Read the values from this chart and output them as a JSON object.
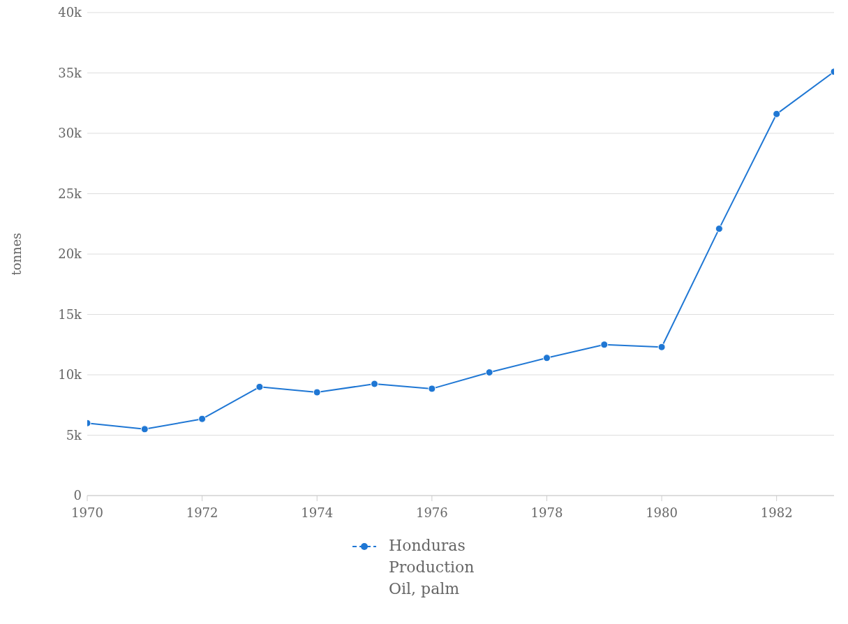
{
  "chart_data": {
    "type": "line",
    "ylabel": "tonnes",
    "x": [
      1970,
      1971,
      1972,
      1973,
      1974,
      1975,
      1976,
      1977,
      1978,
      1979,
      1980,
      1981,
      1982,
      1983
    ],
    "series": [
      {
        "name": "Honduras Production Oil, palm",
        "color": "#1f77d4",
        "values": [
          6000,
          5500,
          6350,
          9000,
          8550,
          9250,
          8850,
          10200,
          11400,
          12500,
          12300,
          22100,
          31600,
          35100
        ]
      }
    ],
    "xlim": [
      1970,
      1983
    ],
    "xticks": [
      1970,
      1972,
      1974,
      1976,
      1978,
      1980,
      1982
    ],
    "ylim": [
      0,
      40000
    ],
    "yticks": [
      {
        "value": 0,
        "label": "0"
      },
      {
        "value": 5000,
        "label": "5k"
      },
      {
        "value": 10000,
        "label": "10k"
      },
      {
        "value": 15000,
        "label": "15k"
      },
      {
        "value": 20000,
        "label": "20k"
      },
      {
        "value": 25000,
        "label": "25k"
      },
      {
        "value": 30000,
        "label": "30k"
      },
      {
        "value": 35000,
        "label": "35k"
      },
      {
        "value": 40000,
        "label": "40k"
      }
    ],
    "grid": "y",
    "legend": "bottom",
    "marker": "circle",
    "line_style": "solid"
  }
}
